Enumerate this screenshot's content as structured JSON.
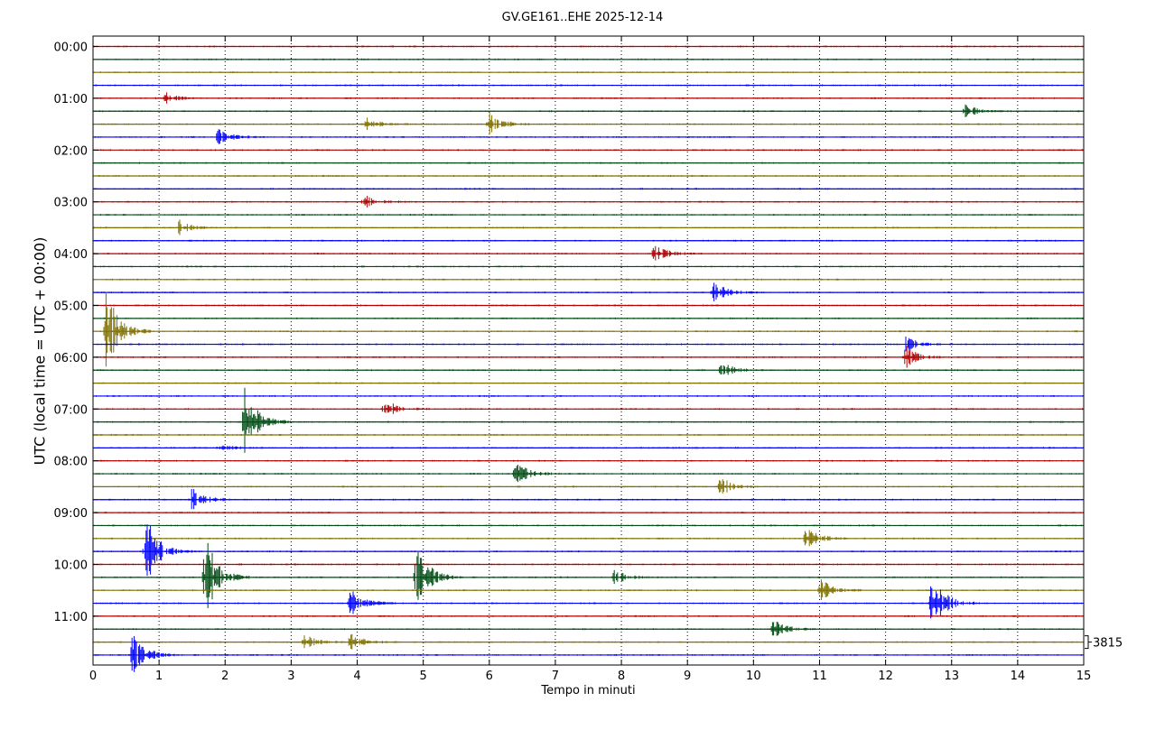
{
  "title": "GV.GE161..EHE 2025-12-14",
  "chart_data": {
    "type": "line",
    "title": "GV.GE161..EHE 2025-12-14",
    "xlabel": "Tempo in minuti",
    "ylabel": "UTC (local time = UTC + 00:00)",
    "xlim": [
      0,
      15
    ],
    "x_ticks": [
      "0",
      "1",
      "2",
      "3",
      "4",
      "5",
      "6",
      "7",
      "8",
      "9",
      "10",
      "11",
      "12",
      "13",
      "14",
      "15"
    ],
    "y_tick_labels": [
      "00:00",
      "01:00",
      "02:00",
      "03:00",
      "04:00",
      "05:00",
      "06:00",
      "07:00",
      "08:00",
      "09:00",
      "10:00",
      "11:00"
    ],
    "grid": "vertical dotted lines at each minute",
    "trace_count": 48,
    "trace_interval_minutes": 15,
    "trace_colors": [
      "#b00000",
      "#004d14",
      "#7f7000",
      "#0000ff"
    ],
    "scale_label": "3815",
    "events": [
      {
        "trace": 4,
        "minute": 1.1,
        "amplitude": 0.5
      },
      {
        "trace": 6,
        "minute": 4.15,
        "amplitude": 0.5
      },
      {
        "trace": 6,
        "minute": 6.0,
        "amplitude": 0.9
      },
      {
        "trace": 5,
        "minute": 13.2,
        "amplitude": 0.5
      },
      {
        "trace": 7,
        "minute": 1.9,
        "amplitude": 0.6
      },
      {
        "trace": 12,
        "minute": 4.1,
        "amplitude": 0.6
      },
      {
        "trace": 14,
        "minute": 1.3,
        "amplitude": 0.6
      },
      {
        "trace": 16,
        "minute": 8.5,
        "amplitude": 0.8
      },
      {
        "trace": 19,
        "minute": 9.4,
        "amplitude": 0.9
      },
      {
        "trace": 22,
        "minute": 0.2,
        "amplitude": 3.5
      },
      {
        "trace": 23,
        "minute": 12.3,
        "amplitude": 0.6
      },
      {
        "trace": 24,
        "minute": 12.3,
        "amplitude": 1.0
      },
      {
        "trace": 25,
        "minute": 9.5,
        "amplitude": 0.7
      },
      {
        "trace": 28,
        "minute": 4.4,
        "amplitude": 0.9
      },
      {
        "trace": 29,
        "minute": 2.3,
        "amplitude": 3.0
      },
      {
        "trace": 31,
        "minute": 1.9,
        "amplitude": 0.3
      },
      {
        "trace": 33,
        "minute": 6.4,
        "amplitude": 1.0
      },
      {
        "trace": 34,
        "minute": 9.5,
        "amplitude": 0.8
      },
      {
        "trace": 35,
        "minute": 1.5,
        "amplitude": 1.0
      },
      {
        "trace": 38,
        "minute": 10.8,
        "amplitude": 0.9
      },
      {
        "trace": 39,
        "minute": 0.8,
        "amplitude": 3.0
      },
      {
        "trace": 41,
        "minute": 1.7,
        "amplitude": 3.5
      },
      {
        "trace": 41,
        "minute": 4.9,
        "amplitude": 3.0
      },
      {
        "trace": 41,
        "minute": 7.9,
        "amplitude": 0.6
      },
      {
        "trace": 42,
        "minute": 11.0,
        "amplitude": 1.0
      },
      {
        "trace": 43,
        "minute": 3.9,
        "amplitude": 1.2
      },
      {
        "trace": 43,
        "minute": 12.7,
        "amplitude": 2.5
      },
      {
        "trace": 45,
        "minute": 10.3,
        "amplitude": 0.7
      },
      {
        "trace": 46,
        "minute": 3.2,
        "amplitude": 0.6
      },
      {
        "trace": 46,
        "minute": 3.9,
        "amplitude": 0.7
      },
      {
        "trace": 47,
        "minute": 0.6,
        "amplitude": 2.0
      }
    ]
  }
}
